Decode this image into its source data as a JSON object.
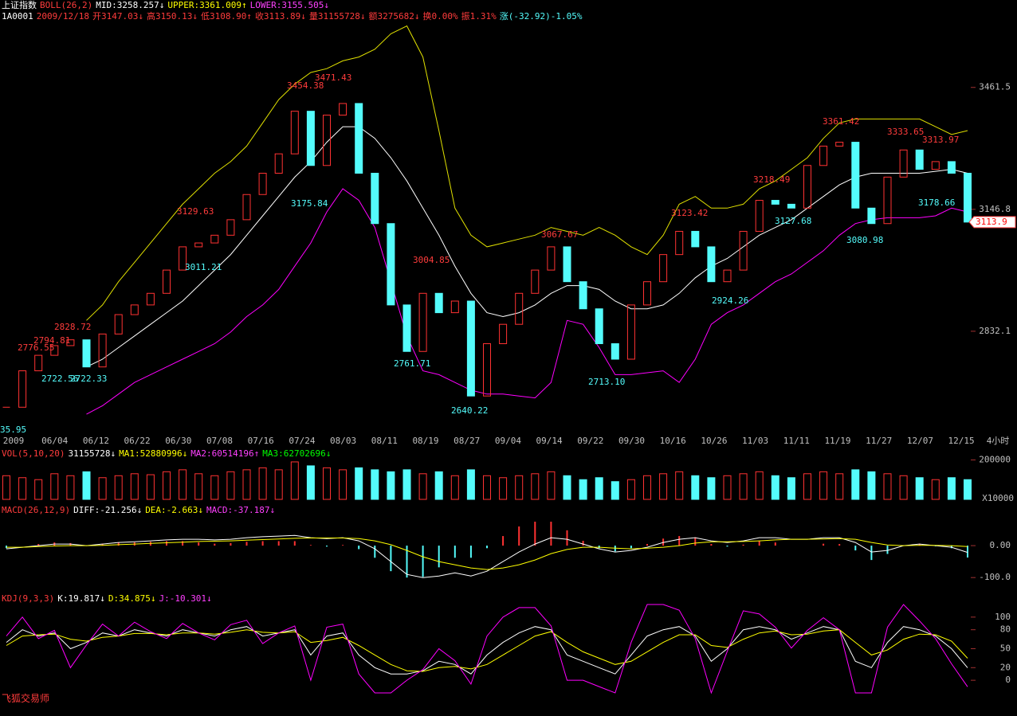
{
  "header": {
    "name": "上证指数",
    "quote": [
      "1A0001",
      "2009/12/18",
      "开3147.03↓",
      "高3150.13↓",
      "低3108.90↑",
      "收3113.89↓",
      "量31155728↓",
      "额3275682↓",
      "换0.00%",
      "振1.31%",
      "涨(-32.92)-1.05%"
    ]
  },
  "footer": "飞狐交易师",
  "chart_data": [
    {
      "type": "candlestick",
      "title": "BOLL(26,2)",
      "indicators": [
        "MID:3258.257↓",
        "UPPER:3361.009↑",
        "LOWER:3155.505↓"
      ],
      "up_color": "#ff3232",
      "down_color": "#54fcfc",
      "close": [
        2636,
        2730,
        2770,
        2795,
        2810,
        2740,
        2825,
        2875,
        2900,
        2930,
        2990,
        3050,
        3060,
        3080,
        3120,
        3185,
        3240,
        3290,
        3400,
        3260,
        3390,
        3420,
        3240,
        3110,
        2900,
        2780,
        2930,
        2880,
        2910,
        2665,
        2800,
        2850,
        2930,
        2990,
        3050,
        2960,
        2890,
        2800,
        2760,
        2900,
        2960,
        3030,
        3090,
        3050,
        2960,
        2990,
        3090,
        3170,
        3160,
        3150,
        3260,
        3310,
        3320,
        3150,
        3110,
        3230,
        3300,
        3250,
        3270,
        3240,
        3113.9
      ],
      "series": [
        {
          "color": "#e0e000",
          "values": [
            null,
            null,
            null,
            null,
            null,
            2860,
            2900,
            2960,
            3010,
            3060,
            3110,
            3160,
            3200,
            3240,
            3270,
            3310,
            3370,
            3430,
            3470,
            3500,
            3510,
            3530,
            3540,
            3560,
            3600,
            3620,
            3540,
            3350,
            3150,
            3080,
            3050,
            3060,
            3070,
            3080,
            3100,
            3090,
            3080,
            3100,
            3080,
            3050,
            3030,
            3080,
            3160,
            3180,
            3150,
            3150,
            3160,
            3200,
            3220,
            3250,
            3280,
            3330,
            3370,
            3380,
            3380,
            3380,
            3380,
            3380,
            3360,
            3340,
            3350
          ]
        },
        {
          "color": "#ffffff",
          "values": [
            null,
            null,
            null,
            null,
            null,
            2740,
            2760,
            2790,
            2820,
            2850,
            2880,
            2910,
            2950,
            2990,
            3030,
            3080,
            3130,
            3180,
            3230,
            3270,
            3320,
            3360,
            3360,
            3330,
            3280,
            3220,
            3150,
            3080,
            3000,
            2930,
            2880,
            2870,
            2880,
            2900,
            2930,
            2950,
            2950,
            2940,
            2910,
            2890,
            2890,
            2900,
            2930,
            2970,
            3000,
            3020,
            3050,
            3080,
            3100,
            3120,
            3150,
            3180,
            3210,
            3230,
            3240,
            3240,
            3240,
            3240,
            3245,
            3250,
            3240
          ]
        },
        {
          "color": "#ff00ff",
          "values": [
            null,
            null,
            null,
            null,
            null,
            2618,
            2640,
            2670,
            2700,
            2720,
            2740,
            2760,
            2780,
            2800,
            2830,
            2870,
            2900,
            2940,
            3000,
            3060,
            3140,
            3200,
            3170,
            3100,
            2960,
            2820,
            2730,
            2720,
            2700,
            2680,
            2670,
            2670,
            2665,
            2660,
            2700,
            2860,
            2850,
            2790,
            2720,
            2720,
            2725,
            2730,
            2700,
            2760,
            2850,
            2880,
            2900,
            2930,
            2960,
            2980,
            3010,
            3040,
            3080,
            3110,
            3120,
            3125,
            3125,
            3125,
            3130,
            3150,
            3140
          ]
        }
      ],
      "ylim": [
        2577,
        3646
      ],
      "yticks": [
        3461.5,
        3146.8,
        2832.1
      ],
      "date_labels": [
        "2009",
        "06/04",
        "06/12",
        "06/22",
        "06/30",
        "07/08",
        "07/16",
        "07/24",
        "08/03",
        "08/11",
        "08/19",
        "08/27",
        "09/04",
        "09/14",
        "09/22",
        "09/30",
        "10/16",
        "10/26",
        "11/03",
        "11/11",
        "11/19",
        "11/27",
        "12/07",
        "12/15"
      ],
      "period_label": "4小时",
      "high_labels": [
        "2776.55",
        "2794.81",
        "2828.72",
        "3129.63",
        "3454.38",
        "3471.43",
        "3004.85",
        "3067.67",
        "3123.42",
        "3218.49",
        "3361.42",
        "3333.65",
        "3313.97"
      ],
      "low_labels": [
        "35.95",
        "2722.56",
        "2722.33",
        "3011.21",
        "3175.84",
        "2761.71",
        "2640.22",
        "2713.10",
        "2924.26",
        "3127.68",
        "3080.98",
        "3178.66"
      ],
      "last_label": "3113.9"
    },
    {
      "type": "bar",
      "title": "VOL(5,10,20)",
      "indicators": [
        "31155728↓",
        "MA1:52880996↓",
        "MA2:60514196↑",
        "MA3:62702696↓"
      ],
      "values": [
        120000,
        110000,
        100000,
        130000,
        120000,
        140000,
        110000,
        120000,
        130000,
        125000,
        140000,
        150000,
        130000,
        120000,
        140000,
        150000,
        160000,
        150000,
        190000,
        170000,
        160000,
        150000,
        160000,
        150000,
        140000,
        150000,
        130000,
        140000,
        120000,
        150000,
        120000,
        110000,
        120000,
        130000,
        140000,
        120000,
        100000,
        110000,
        90000,
        100000,
        120000,
        130000,
        140000,
        120000,
        110000,
        120000,
        130000,
        140000,
        120000,
        110000,
        130000,
        140000,
        130000,
        150000,
        140000,
        130000,
        120000,
        110000,
        100000,
        110000,
        100000
      ],
      "ylim": [
        0,
        210000
      ],
      "yticks": [
        200000
      ],
      "unit_label": "X10000"
    },
    {
      "type": "macd",
      "title": "MACD(26,12,9)",
      "indicators": [
        "DIFF:-21.256↓",
        "DEA:-2.663↓",
        "MACD:-37.187↓"
      ],
      "series": [
        {
          "color": "#ffffff",
          "values": [
            -10,
            -5,
            0,
            5,
            5,
            0,
            5,
            10,
            12,
            15,
            18,
            20,
            20,
            18,
            20,
            25,
            28,
            30,
            32,
            25,
            22,
            25,
            15,
            -10,
            -50,
            -90,
            -100,
            -95,
            -85,
            -95,
            -80,
            -50,
            -20,
            5,
            25,
            20,
            5,
            -10,
            -20,
            -15,
            -5,
            10,
            20,
            25,
            15,
            10,
            15,
            25,
            25,
            20,
            20,
            25,
            25,
            10,
            -20,
            -15,
            0,
            5,
            0,
            -5,
            -21.256
          ]
        },
        {
          "color": "#ffff00",
          "values": [
            -5,
            -5,
            -3,
            -1,
            0,
            0,
            1,
            3,
            5,
            7,
            9,
            11,
            13,
            14,
            15,
            17,
            19,
            21,
            23,
            24,
            24,
            24,
            22,
            15,
            3,
            -15,
            -35,
            -50,
            -60,
            -70,
            -75,
            -70,
            -60,
            -45,
            -25,
            -12,
            -5,
            -5,
            -8,
            -10,
            -8,
            -5,
            0,
            8,
            12,
            12,
            13,
            15,
            18,
            20,
            20,
            21,
            22,
            20,
            10,
            2,
            0,
            1,
            1,
            0,
            -2.663
          ]
        }
      ],
      "bars": [
        -8,
        0,
        5,
        10,
        8,
        0,
        6,
        10,
        10,
        12,
        14,
        14,
        10,
        6,
        8,
        12,
        14,
        14,
        14,
        2,
        -3,
        2,
        -11,
        -38,
        -80,
        -100,
        -98,
        -68,
        -38,
        -38,
        -8,
        30,
        60,
        75,
        75,
        48,
        15,
        -8,
        -18,
        -8,
        5,
        22,
        30,
        26,
        5,
        -3,
        3,
        15,
        10,
        0,
        0,
        6,
        5,
        -15,
        -45,
        -26,
        0,
        6,
        -2,
        -8,
        -37.187
      ],
      "ylim": [
        -137,
        100
      ],
      "yticks": [
        {
          "value": 0,
          "label": "0.00"
        },
        {
          "value": -100,
          "label": "-100.0"
        }
      ]
    },
    {
      "type": "line",
      "title": "KDJ(9,3,3)",
      "indicators": [
        "K:19.817↓",
        "D:34.875↓",
        "J:-10.301↓"
      ],
      "series": [
        {
          "color": "#ffffff",
          "values": [
            60,
            80,
            70,
            75,
            50,
            60,
            75,
            70,
            80,
            75,
            70,
            80,
            75,
            70,
            80,
            85,
            70,
            75,
            80,
            40,
            70,
            75,
            40,
            20,
            10,
            10,
            15,
            30,
            25,
            10,
            40,
            60,
            75,
            85,
            80,
            40,
            30,
            20,
            10,
            40,
            70,
            80,
            85,
            70,
            30,
            50,
            80,
            85,
            80,
            65,
            75,
            85,
            80,
            30,
            20,
            60,
            85,
            80,
            70,
            50,
            19.817
          ]
        },
        {
          "color": "#ffff00",
          "values": [
            55,
            70,
            72,
            73,
            65,
            62,
            68,
            70,
            74,
            74,
            72,
            75,
            75,
            73,
            76,
            80,
            76,
            75,
            77,
            60,
            63,
            68,
            55,
            40,
            25,
            15,
            14,
            20,
            22,
            18,
            25,
            40,
            55,
            70,
            77,
            60,
            45,
            35,
            25,
            30,
            45,
            60,
            72,
            72,
            55,
            52,
            65,
            75,
            78,
            72,
            73,
            78,
            80,
            60,
            40,
            48,
            65,
            73,
            72,
            62,
            34.875
          ]
        },
        {
          "color": "#ff00ff",
          "values": [
            70,
            100,
            66,
            79,
            20,
            56,
            89,
            70,
            92,
            77,
            66,
            90,
            75,
            64,
            88,
            95,
            58,
            75,
            86,
            0,
            84,
            89,
            10,
            -20,
            -20,
            0,
            17,
            50,
            31,
            -6,
            70,
            100,
            115,
            115,
            86,
            0,
            0,
            -10,
            -20,
            60,
            120,
            120,
            111,
            66,
            -20,
            46,
            110,
            105,
            84,
            51,
            79,
            99,
            80,
            -20,
            -20,
            84,
            120,
            94,
            66,
            26,
            -10.301
          ]
        }
      ],
      "ylim": [
        -20,
        125
      ],
      "yticks": [
        100,
        80,
        50,
        20,
        0
      ]
    }
  ]
}
